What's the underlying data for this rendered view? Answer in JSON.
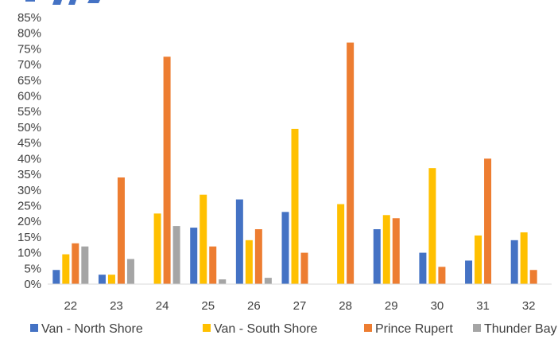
{
  "chart_data": {
    "type": "bar",
    "title": "",
    "xlabel": "",
    "ylabel": "",
    "categories": [
      "22",
      "23",
      "24",
      "25",
      "26",
      "27",
      "28",
      "29",
      "30",
      "31",
      "32"
    ],
    "series": [
      {
        "name": "Van - North Shore",
        "color": "#4472C4",
        "values": [
          4.5,
          3,
          null,
          18,
          27,
          23,
          null,
          17.5,
          10,
          7.5,
          14
        ]
      },
      {
        "name": "Van - South Shore",
        "color": "#FFC000",
        "values": [
          9.5,
          3,
          22.5,
          28.5,
          14,
          49.5,
          25.5,
          22,
          37,
          15.5,
          16.5
        ]
      },
      {
        "name": "Prince Rupert",
        "color": "#ED7D31",
        "values": [
          13,
          34,
          72.5,
          12,
          17.5,
          10,
          77,
          21,
          5.5,
          40,
          4.5
        ]
      },
      {
        "name": "Thunder Bay",
        "color": "#A5A5A5",
        "values": [
          12,
          8,
          18.5,
          1.5,
          2,
          null,
          null,
          null,
          null,
          null,
          null
        ]
      }
    ],
    "ylim": [
      0,
      85
    ],
    "ytick_step": 5,
    "ytick_labels": [
      "0%",
      "5%",
      "10%",
      "15%",
      "20%",
      "25%",
      "30%",
      "35%",
      "40%",
      "45%",
      "50%",
      "55%",
      "60%",
      "65%",
      "70%",
      "75%",
      "80%",
      "85%"
    ],
    "grid": false,
    "legend_position": "bottom"
  }
}
